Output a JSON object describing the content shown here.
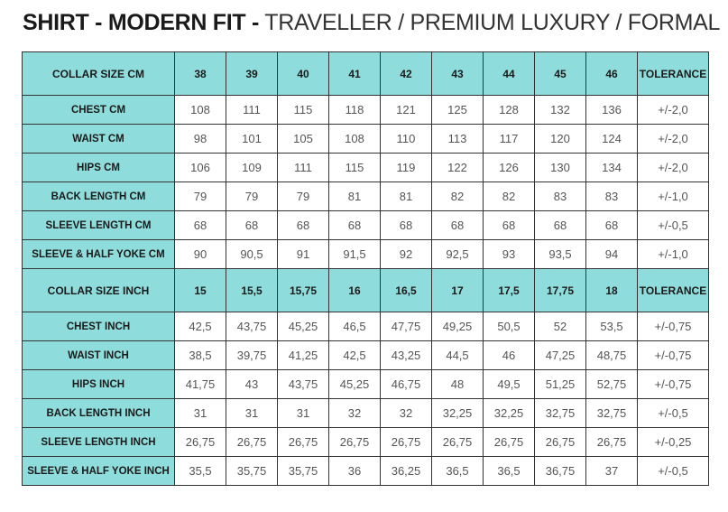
{
  "title": {
    "bold": "SHIRT - MODERN FIT -",
    "light": "TRAVELLER / PREMIUM LUXURY / FORMAL"
  },
  "colors": {
    "header_bg": "#8fdcdc",
    "border": "#333333"
  },
  "sections": [
    {
      "header": [
        "COLLAR SIZE CM",
        "38",
        "39",
        "40",
        "41",
        "42",
        "43",
        "44",
        "45",
        "46",
        "TOLERANCE"
      ],
      "rows": [
        [
          "CHEST CM",
          "108",
          "111",
          "115",
          "118",
          "121",
          "125",
          "128",
          "132",
          "136",
          "+/-2,0"
        ],
        [
          "WAIST CM",
          "98",
          "101",
          "105",
          "108",
          "110",
          "113",
          "117",
          "120",
          "124",
          "+/-2,0"
        ],
        [
          "HIPS CM",
          "106",
          "109",
          "111",
          "115",
          "119",
          "122",
          "126",
          "130",
          "134",
          "+/-2,0"
        ],
        [
          "BACK LENGTH CM",
          "79",
          "79",
          "79",
          "81",
          "81",
          "82",
          "82",
          "83",
          "83",
          "+/-1,0"
        ],
        [
          "SLEEVE LENGTH CM",
          "68",
          "68",
          "68",
          "68",
          "68",
          "68",
          "68",
          "68",
          "68",
          "+/-0,5"
        ],
        [
          "SLEEVE & HALF YOKE CM",
          "90",
          "90,5",
          "91",
          "91,5",
          "92",
          "92,5",
          "93",
          "93,5",
          "94",
          "+/-1,0"
        ]
      ]
    },
    {
      "header": [
        "COLLAR SIZE INCH",
        "15",
        "15,5",
        "15,75",
        "16",
        "16,5",
        "17",
        "17,5",
        "17,75",
        "18",
        "TOLERANCE"
      ],
      "rows": [
        [
          "CHEST INCH",
          "42,5",
          "43,75",
          "45,25",
          "46,5",
          "47,75",
          "49,25",
          "50,5",
          "52",
          "53,5",
          "+/-0,75"
        ],
        [
          "WAIST INCH",
          "38,5",
          "39,75",
          "41,25",
          "42,5",
          "43,25",
          "44,5",
          "46",
          "47,25",
          "48,75",
          "+/-0,75"
        ],
        [
          "HIPS INCH",
          "41,75",
          "43",
          "43,75",
          "45,25",
          "46,75",
          "48",
          "49,5",
          "51,25",
          "52,75",
          "+/-0,75"
        ],
        [
          "BACK LENGTH INCH",
          "31",
          "31",
          "31",
          "32",
          "32",
          "32,25",
          "32,25",
          "32,75",
          "32,75",
          "+/-0,5"
        ],
        [
          "SLEEVE LENGTH INCH",
          "26,75",
          "26,75",
          "26,75",
          "26,75",
          "26,75",
          "26,75",
          "26,75",
          "26,75",
          "26,75",
          "+/-0,25"
        ],
        [
          "SLEEVE & HALF YOKE INCH",
          "35,5",
          "35,75",
          "35,75",
          "36",
          "36,25",
          "36,5",
          "36,5",
          "36,75",
          "37",
          "+/-0,5"
        ]
      ]
    }
  ]
}
